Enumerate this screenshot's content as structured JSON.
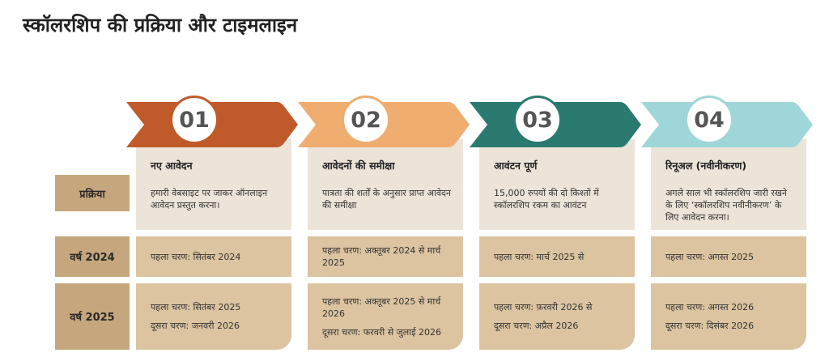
{
  "title": "स्कॉलरशिप की प्रक्रिया और टाइमलाइन",
  "row_labels": {
    "process": "प्रक्रिया",
    "year2024": "वर्ष 2024",
    "year2025": "वर्ष 2025"
  },
  "steps": [
    {
      "number": "01",
      "color": "#c05a2a",
      "heading": "नए आवेदन",
      "description": "हमारी वेबसाइट पर जाकर ऑनलाइन आवेदन प्रस्तुत करना।",
      "y2024": [
        "पहला चरण: सितंबर 2024"
      ],
      "y2025": [
        "पहला चरण: सितंबर 2025",
        "दूसरा चरण: जनवरी 2026"
      ]
    },
    {
      "number": "02",
      "color": "#f0ad70",
      "heading": "आवेदनों की समीक्षा",
      "description": "पात्रता की शर्तों के अनुसार प्राप्त आवेदन की समीक्षा",
      "y2024": [
        "पहला चरण: अक्तूबर 2024 से मार्च 2025"
      ],
      "y2025": [
        "पहला चरण: अक्तूबर 2025 से मार्च 2026",
        "दूसरा चरण: फरवरी से जुलाई 2026"
      ]
    },
    {
      "number": "03",
      "color": "#2a7a70",
      "heading": "आवंटन पूर्ण",
      "description": "15,000 रुपयों की दो किश्तों में स्कॉलरशिप रकम का आवंटन",
      "y2024": [
        "पहला चरण: मार्च 2025 से"
      ],
      "y2025": [
        "पहला चरण: फ़रवरी 2026 से",
        "दूसरा चरण: अप्रैल 2026"
      ]
    },
    {
      "number": "04",
      "color": "#9fd6d9",
      "heading": "रिनूअल (नवीनीकरण)",
      "description": "अगले साल भी स्कॉलरशिप जारी रखने के लिए ‘स्कॉलरशिप नवीनीकरण’ के लिए आवेदन करना।",
      "y2024": [
        "पहला चरण: अगस्त 2025"
      ],
      "y2025": [
        "पहला चरण: अगस्त  2026",
        "दूसरा चरण: दिसंबर 2026"
      ]
    }
  ]
}
